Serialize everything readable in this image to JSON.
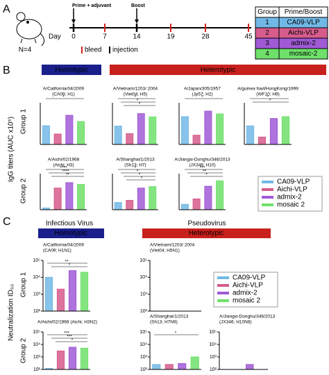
{
  "panel_a": {
    "letter": "A",
    "mouse_label": "N=4",
    "day_label": "Day",
    "prime_label": "Prime + adjuvant",
    "boost_label": "Boost",
    "days": [
      "0",
      "7",
      "14",
      "19",
      "28",
      "45"
    ],
    "bleed_label": "bleed",
    "injection_label": "injection",
    "table": {
      "header": [
        "Group",
        "Prime/Boost"
      ],
      "rows": [
        [
          "1",
          "CA09-VLP"
        ],
        [
          "2",
          "Aichi-VLP"
        ],
        [
          "3",
          "admix-2"
        ],
        [
          "4",
          "mosaic-2"
        ]
      ]
    }
  },
  "colors": [
    "#72b8e6",
    "#d65c8c",
    "#a05ad6",
    "#6fe06a"
  ],
  "panel_b": {
    "letter": "B",
    "homotypic": "Homotypic",
    "heterotypic": "Heterotypic",
    "ylabel": "IgG titers (AUC x10⁵)",
    "groups": [
      "Group 1",
      "Group 2"
    ],
    "legend": [
      "CA09-VLP",
      "Aichi-VLP",
      "admix-2",
      "mosaic 2"
    ],
    "charts": [
      {
        "group": 0,
        "title": [
          "A/California/04/2009",
          "(CA09; H1)"
        ],
        "values": [
          9,
          5,
          14,
          11
        ],
        "ylim": [
          0,
          20
        ],
        "sig": [
          "*"
        ]
      },
      {
        "group": 0,
        "title": [
          "A/Vietnam/1203/ 2004",
          "(Viet04; H5)"
        ],
        "values": [
          2.2,
          1.3,
          3.7,
          3.3
        ],
        "ylim": [
          0,
          5
        ],
        "sig": [
          "*",
          "*",
          "*"
        ]
      },
      {
        "group": 0,
        "title": [
          "A/Japan/305/1957",
          "(Jp57; H2)"
        ],
        "values": [
          3,
          1,
          3.6,
          3.3
        ],
        "ylim": [
          0,
          4.5
        ],
        "sig": [
          "*"
        ]
      },
      {
        "group": 0,
        "title": [
          "A/guinea fowl/HongKong/1999",
          "(WF10; H9)"
        ],
        "values": [
          2,
          0.8,
          2.8,
          3
        ],
        "ylim": [
          0,
          4.5
        ],
        "sig": [
          "*",
          "*"
        ]
      },
      {
        "group": 1,
        "title": [
          "A/Aichi/02/1968",
          "(Aichi; H3)"
        ],
        "values": [
          1,
          12,
          15,
          14
        ],
        "ylim": [
          0,
          20
        ],
        "sig": [
          "****",
          "****",
          "**"
        ]
      },
      {
        "group": 1,
        "title": [
          "A/Shanghai/1/2013",
          "(Sh13; H7)"
        ],
        "values": [
          1,
          1.3,
          3,
          3.2
        ],
        "ylim": [
          0,
          5
        ],
        "sig": [
          "*",
          "*",
          "*",
          "*"
        ]
      },
      {
        "group": 1,
        "title": [
          "A/Jiangxi-Donghu/346/2013",
          "(JX346; H10)"
        ],
        "values": [
          0.3,
          0.6,
          1.3,
          1.6
        ],
        "ylim": [
          0,
          2
        ],
        "sig": [
          "***",
          "**",
          "*"
        ]
      }
    ]
  },
  "panel_c": {
    "letter": "C",
    "infectious": "Infectious Virus",
    "pseudo": "Pseudovirus",
    "homotypic": "Homotypic",
    "heterotypic": "Heterotypic",
    "ylabel": "Neutralization ID₅₀",
    "groups": [
      "Group 1",
      "Group 2"
    ],
    "legend": [
      "CA09-VLP",
      "Aichi-VLP",
      "admix-2",
      "mosaic 2"
    ],
    "ylim": [
      100,
      100000
    ],
    "yticks": [
      {
        "value": 100,
        "label": "10²"
      },
      {
        "value": 1000,
        "label": "10³"
      },
      {
        "value": 10000,
        "label": "10⁴"
      },
      {
        "value": 100000,
        "label": "10⁵"
      }
    ],
    "charts": [
      {
        "title": [
          "A/California/04/2009",
          "(CA09; H1N1)"
        ],
        "values": [
          10000,
          2000,
          25000,
          20000
        ],
        "sig": [
          "**",
          "*"
        ]
      },
      {
        "title": [
          "A/Vietnam/1203/ 2004",
          "(Viet04; H5N1)"
        ],
        "values": [
          100,
          100,
          100,
          100
        ],
        "sig": []
      },
      {
        "title": [
          "A/Aichi/02/1968 (Aichi; H3N2)"
        ],
        "values": [
          120,
          3000,
          6000,
          5000
        ],
        "sig": [
          "***",
          "***",
          "*"
        ]
      },
      {
        "title": [
          "A/Shanghai/1/2013",
          "(Sh13; H7N9)"
        ],
        "values": [
          250,
          250,
          300,
          1000
        ],
        "sig": [
          "*"
        ]
      },
      {
        "title": [
          "A/Jiangxi-Donghu/346/2013",
          "(JX346; H10N8)"
        ],
        "values": [
          100,
          100,
          250,
          100
        ],
        "sig": []
      }
    ]
  }
}
